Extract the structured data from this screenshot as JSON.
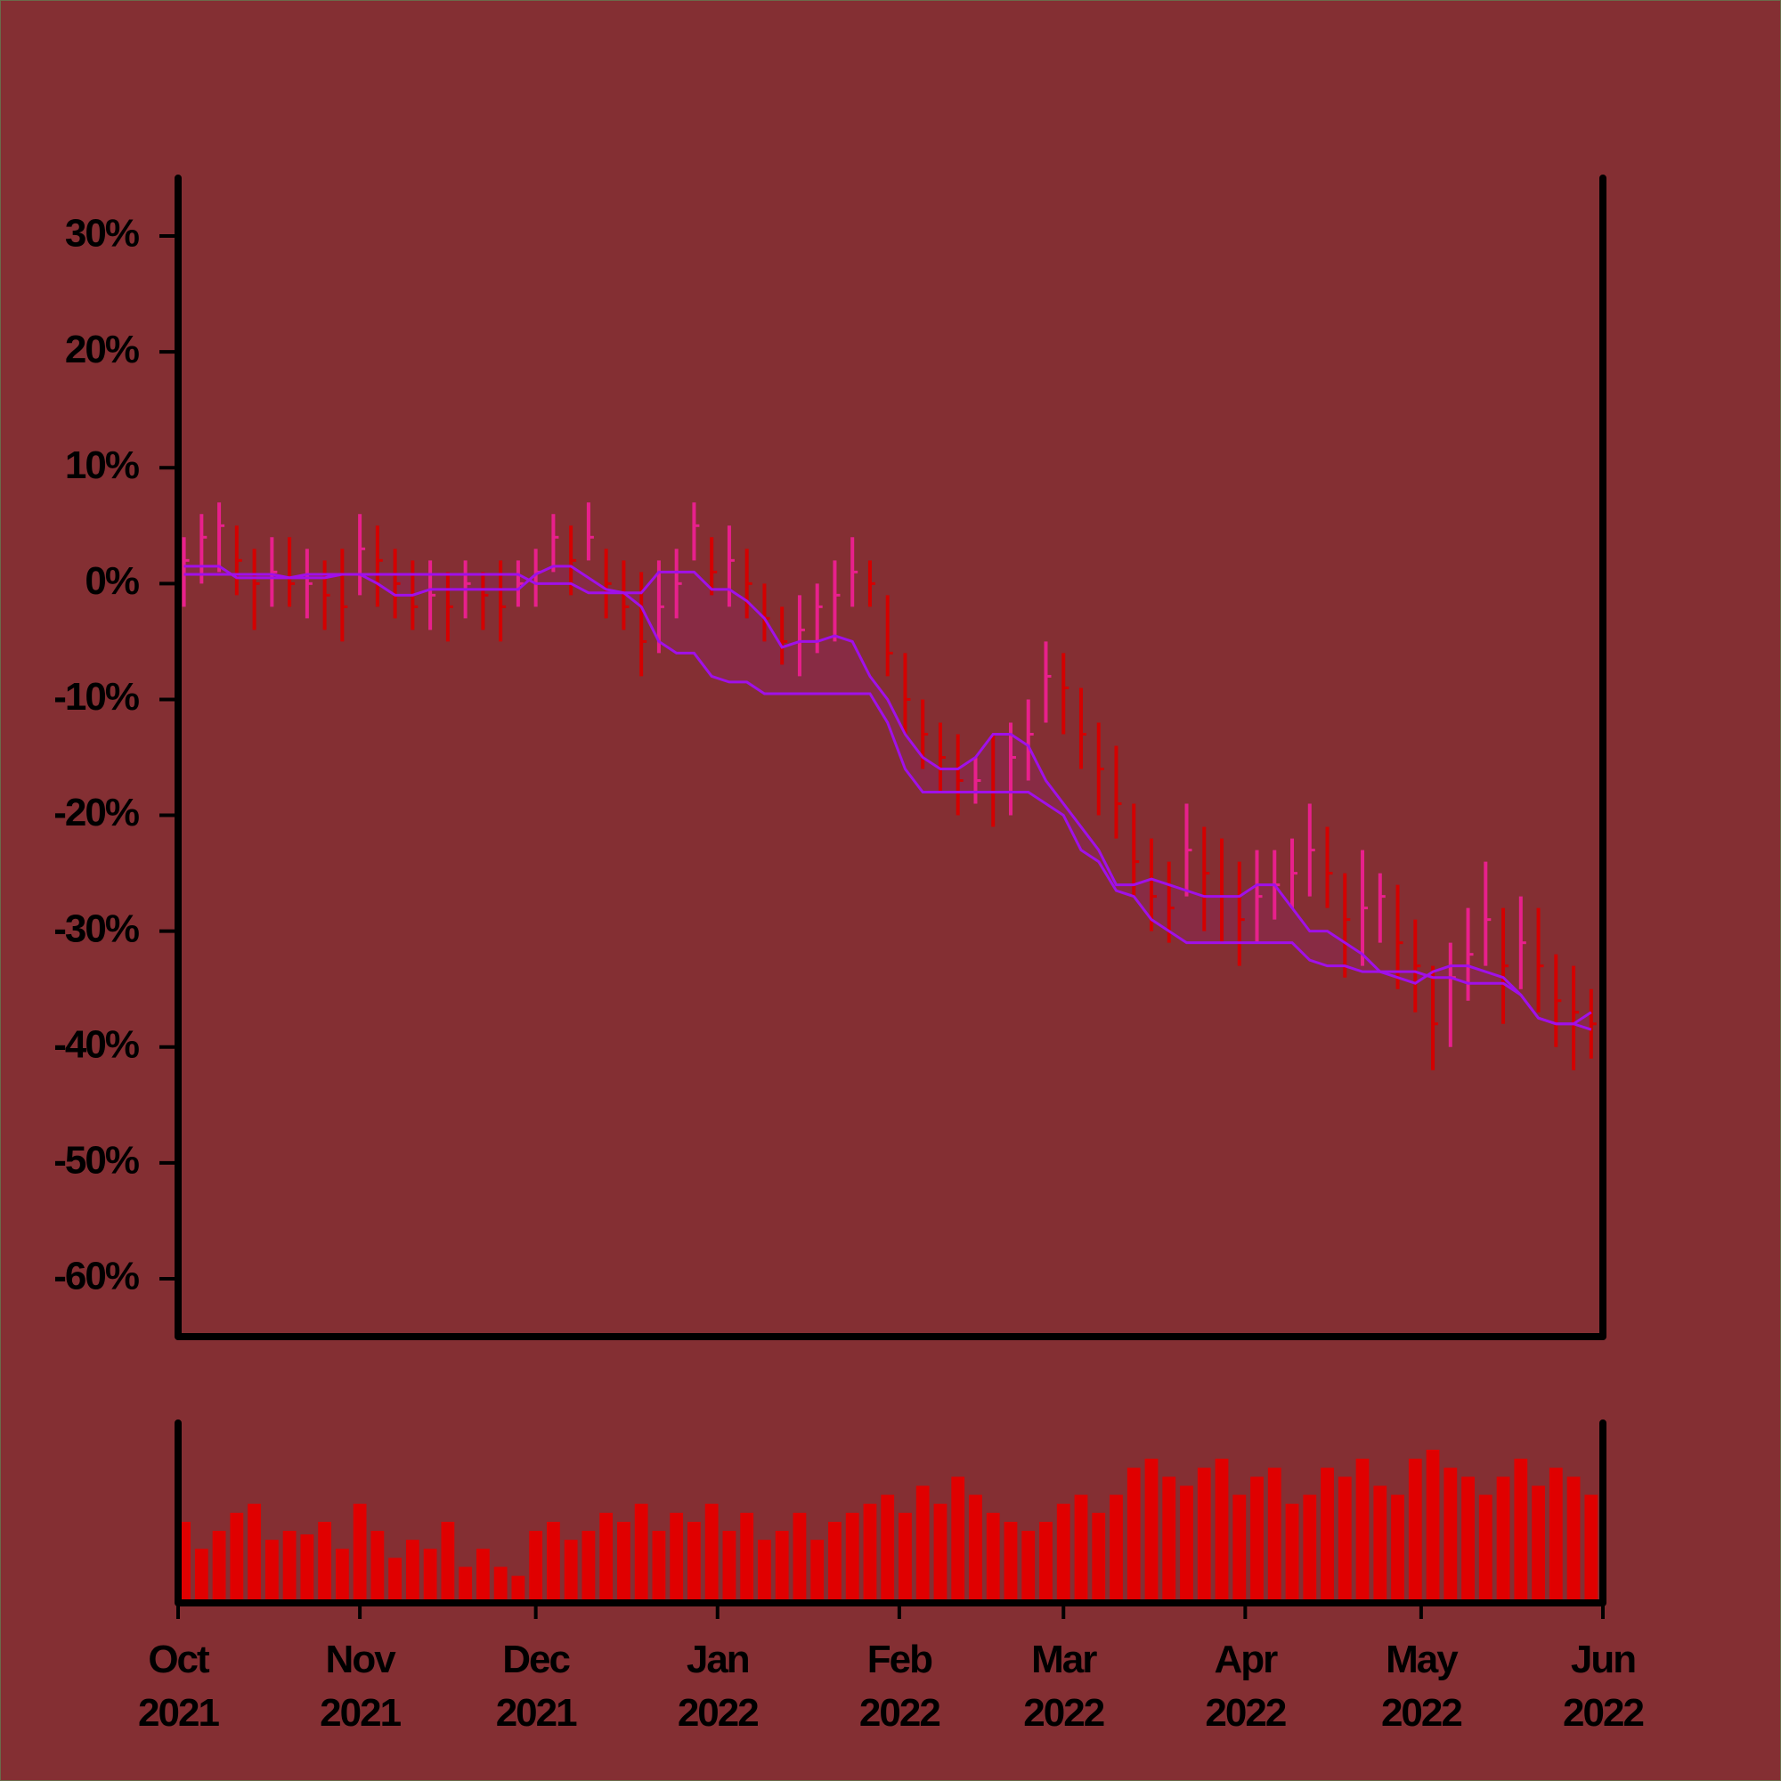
{
  "chart_data": {
    "type": "ohlc",
    "x": [
      1,
      4,
      7,
      10,
      13,
      16,
      19,
      22,
      25,
      28,
      31,
      34,
      37,
      40,
      43,
      46,
      49,
      52,
      55,
      58,
      61,
      64,
      67,
      70,
      73,
      76,
      79,
      82,
      85,
      88,
      91,
      94,
      97,
      100,
      103,
      106,
      109,
      112,
      115,
      118,
      121,
      124,
      127,
      130,
      133,
      136,
      139,
      142,
      145,
      148,
      151,
      154,
      157,
      160,
      163,
      166,
      169,
      172,
      175,
      178,
      181,
      184,
      187,
      190,
      193,
      196,
      199,
      202,
      205,
      208,
      211,
      214,
      217,
      220,
      223,
      226,
      229,
      232,
      235,
      238,
      241
    ],
    "high": [
      4,
      6,
      7,
      5,
      3,
      4,
      4,
      3,
      2,
      3,
      6,
      5,
      3,
      2,
      2,
      1,
      2,
      1,
      2,
      2,
      3,
      6,
      5,
      7,
      3,
      2,
      1,
      2,
      3,
      7,
      4,
      5,
      3,
      0,
      -2,
      -1,
      0,
      2,
      4,
      2,
      -1,
      -6,
      -10,
      -12,
      -13,
      -15,
      -13,
      -12,
      -10,
      -5,
      -6,
      -9,
      -12,
      -14,
      -19,
      -22,
      -24,
      -19,
      -21,
      -22,
      -24,
      -23,
      -23,
      -22,
      -19,
      -21,
      -25,
      -23,
      -25,
      -26,
      -29,
      -33,
      -31,
      -28,
      -24,
      -28,
      -27,
      -28,
      -32,
      -33,
      -35
    ],
    "low": [
      -2,
      0,
      1,
      -1,
      -4,
      -2,
      -2,
      -3,
      -4,
      -5,
      -1,
      -2,
      -3,
      -4,
      -4,
      -5,
      -3,
      -4,
      -5,
      -2,
      -2,
      1,
      -1,
      2,
      -3,
      -4,
      -8,
      -6,
      -3,
      2,
      -1,
      -2,
      -3,
      -5,
      -7,
      -8,
      -6,
      -5,
      -2,
      -2,
      -8,
      -13,
      -16,
      -18,
      -20,
      -19,
      -21,
      -20,
      -17,
      -12,
      -13,
      -16,
      -20,
      -22,
      -27,
      -30,
      -31,
      -27,
      -30,
      -31,
      -33,
      -31,
      -29,
      -28,
      -27,
      -28,
      -34,
      -33,
      -31,
      -35,
      -37,
      -42,
      -40,
      -36,
      -33,
      -38,
      -35,
      -37,
      -40,
      -42,
      -41
    ],
    "close": [
      2,
      4,
      5,
      2,
      0,
      1,
      0,
      0,
      -1,
      -2,
      3,
      2,
      0,
      -2,
      -1,
      -2,
      0,
      -1,
      -2,
      0,
      1,
      4,
      2,
      4,
      0,
      -2,
      -5,
      -2,
      0,
      5,
      1,
      2,
      0,
      -3,
      -5,
      -4,
      -2,
      -1,
      1,
      0,
      -6,
      -10,
      -13,
      -15,
      -17,
      -17,
      -18,
      -15,
      -13,
      -8,
      -9,
      -13,
      -16,
      -19,
      -24,
      -27,
      -28,
      -23,
      -25,
      -27,
      -29,
      -27,
      -26,
      -25,
      -23,
      -25,
      -29,
      -28,
      -27,
      -31,
      -33,
      -38,
      -34,
      -32,
      -29,
      -33,
      -31,
      -33,
      -36,
      -37,
      -38
    ],
    "up_color": "#e8208c",
    "down_color": "#d40000",
    "lines": [
      {
        "color": "#a010e8",
        "values": [
          1.5,
          1.5,
          1.5,
          0.5,
          0.5,
          0.5,
          0.5,
          0.8,
          0.8,
          0.8,
          0.8,
          0,
          -1,
          -1,
          -0.5,
          -0.5,
          -0.5,
          -0.5,
          -0.5,
          -0.5,
          0.8,
          1.5,
          1.5,
          0.5,
          -0.5,
          -0.8,
          -0.8,
          1,
          1,
          1,
          -0.5,
          -0.5,
          -1.5,
          -3,
          -5.5,
          -5,
          -5,
          -4.5,
          -5,
          -8,
          -10,
          -13,
          -15,
          -16,
          -16,
          -15,
          -13,
          -13,
          -14,
          -17,
          -19,
          -21,
          -23,
          -26,
          -26,
          -25.5,
          -26,
          -26.5,
          -27,
          -27,
          -27,
          -26,
          -26,
          -28,
          -30,
          -30,
          -31,
          -32,
          -33.5,
          -34,
          -34.5,
          -33.5,
          -33,
          -33,
          -33.5,
          -34,
          -35.5,
          -37.5,
          -38,
          -38,
          -38.5
        ]
      },
      {
        "color": "#a010e8",
        "values": [
          0.8,
          0.8,
          0.8,
          0.8,
          0.8,
          0.8,
          0.5,
          0.5,
          0.5,
          0.8,
          0.8,
          0.8,
          0.8,
          0.8,
          0.8,
          0.8,
          0.8,
          0.8,
          0.8,
          0.8,
          0,
          0,
          0,
          -0.8,
          -0.8,
          -0.8,
          -2,
          -5,
          -6,
          -6,
          -8,
          -8.5,
          -8.5,
          -9.5,
          -9.5,
          -9.5,
          -9.5,
          -9.5,
          -9.5,
          -9.5,
          -12,
          -16,
          -18,
          -18,
          -18,
          -18,
          -18,
          -18,
          -18,
          -19,
          -20,
          -23,
          -24,
          -26.5,
          -27,
          -29,
          -30,
          -31,
          -31,
          -31,
          -31,
          -31,
          -31,
          -31,
          -32.5,
          -33,
          -33,
          -33.5,
          -33.5,
          -33.5,
          -33.5,
          -34,
          -34,
          -34.5,
          -34.5,
          -34.5,
          -35.5,
          -37.5,
          -38,
          -38,
          -37
        ]
      }
    ],
    "cloud_color": "#8a2a48",
    "volume": {
      "color": "#e00000",
      "values": [
        45,
        30,
        40,
        50,
        55,
        35,
        40,
        38,
        45,
        30,
        55,
        40,
        25,
        35,
        30,
        45,
        20,
        30,
        20,
        15,
        40,
        45,
        35,
        40,
        50,
        45,
        55,
        40,
        50,
        45,
        55,
        40,
        50,
        35,
        40,
        50,
        35,
        45,
        50,
        55,
        60,
        50,
        65,
        55,
        70,
        60,
        50,
        45,
        40,
        45,
        55,
        60,
        50,
        60,
        75,
        80,
        70,
        65,
        75,
        80,
        60,
        70,
        75,
        55,
        60,
        75,
        70,
        80,
        65,
        60,
        80,
        85,
        75,
        70,
        60,
        70,
        80,
        65,
        75,
        70,
        60
      ]
    },
    "xlim": [
      0,
      243
    ],
    "xticks": [
      {
        "value": 0,
        "label": "Oct 2021"
      },
      {
        "value": 31,
        "label": "Nov 2021"
      },
      {
        "value": 61,
        "label": "Dec 2021"
      },
      {
        "value": 92,
        "label": "Jan 2022"
      },
      {
        "value": 123,
        "label": "Feb 2022"
      },
      {
        "value": 151,
        "label": "Mar 2022"
      },
      {
        "value": 182,
        "label": "Apr 2022"
      },
      {
        "value": 212,
        "label": "May 2022"
      },
      {
        "value": 243,
        "label": "Jun 2022"
      }
    ],
    "ylim": [
      -65,
      35
    ],
    "yticks": [
      {
        "value": 30,
        "label": "30%"
      },
      {
        "value": 20,
        "label": "20%"
      },
      {
        "value": 10,
        "label": "10%"
      },
      {
        "value": 0,
        "label": "0%"
      },
      {
        "value": -10,
        "label": "-10%"
      },
      {
        "value": -20,
        "label": "-20%"
      },
      {
        "value": -30,
        "label": "-30%"
      },
      {
        "value": -40,
        "label": "-40%"
      },
      {
        "value": -50,
        "label": "-50%"
      },
      {
        "value": -60,
        "label": "-60%"
      }
    ]
  }
}
